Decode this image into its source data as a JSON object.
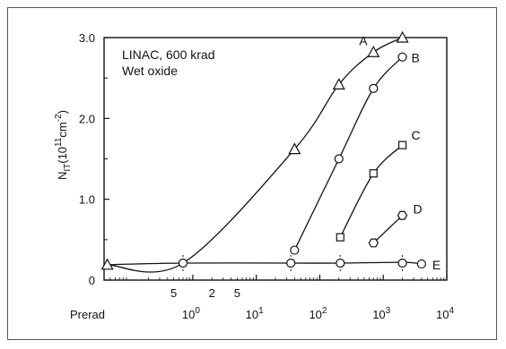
{
  "chart_data": {
    "type": "line",
    "title": "",
    "xlabel": "",
    "ylabel": "N_IT(10^11 cm^-2)",
    "ylabel_parts": {
      "main": "N",
      "sub": "IT",
      "paren_open": "(10",
      "exp1": "11",
      "unit": "cm",
      "exp2": "-2",
      "paren_close": ")"
    },
    "x_scale": "log",
    "xlim": [
      0.04,
      10000
    ],
    "ylim": [
      0,
      3.0
    ],
    "x_ticks": [
      {
        "value": 1,
        "base": "10",
        "exp": "0"
      },
      {
        "value": 10,
        "base": "10",
        "exp": "1"
      },
      {
        "value": 100,
        "base": "10",
        "exp": "2"
      },
      {
        "value": 1000,
        "base": "10",
        "exp": "3"
      },
      {
        "value": 10000,
        "base": "10",
        "exp": "4"
      }
    ],
    "x_minor_labels": [
      {
        "value": 0.5,
        "label": "5"
      },
      {
        "value": 2,
        "label": "2"
      },
      {
        "value": 5,
        "label": "5"
      }
    ],
    "x_first_label": "Prerad",
    "y_ticks": [
      {
        "value": 0,
        "label": "0"
      },
      {
        "value": 1.0,
        "label": "1.0"
      },
      {
        "value": 2.0,
        "label": "2.0"
      },
      {
        "value": 3.0,
        "label": "3.0"
      }
    ],
    "annotations": [
      "LINAC, 600 krad",
      "Wet oxide"
    ],
    "grid": false,
    "baseline": {
      "points": [
        [
          0.045,
          0.19
        ],
        [
          0.7,
          0.21
        ],
        [
          35,
          0.21
        ],
        [
          210,
          0.21
        ],
        [
          2000,
          0.22
        ],
        [
          4000,
          0.2
        ]
      ],
      "x_markers": [
        0.7,
        35,
        210,
        2000
      ]
    },
    "series": [
      {
        "name": "A",
        "marker": "triangle",
        "points": [
          [
            0.045,
            0.19
          ],
          [
            0.7,
            0.21
          ],
          [
            40,
            1.62
          ],
          [
            200,
            2.42
          ],
          [
            700,
            2.82
          ],
          [
            2000,
            3.0
          ]
        ]
      },
      {
        "name": "B",
        "marker": "circle",
        "points": [
          [
            40,
            0.37
          ],
          [
            200,
            1.5
          ],
          [
            700,
            2.37
          ],
          [
            2000,
            2.76
          ]
        ]
      },
      {
        "name": "C",
        "marker": "square",
        "points": [
          [
            210,
            0.53
          ],
          [
            700,
            1.32
          ],
          [
            2000,
            1.67
          ]
        ]
      },
      {
        "name": "D",
        "marker": "hexagon",
        "points": [
          [
            700,
            0.46
          ],
          [
            2000,
            0.8
          ]
        ]
      },
      {
        "name": "E",
        "marker": "circle",
        "points": [
          [
            4000,
            0.2
          ]
        ]
      }
    ]
  }
}
